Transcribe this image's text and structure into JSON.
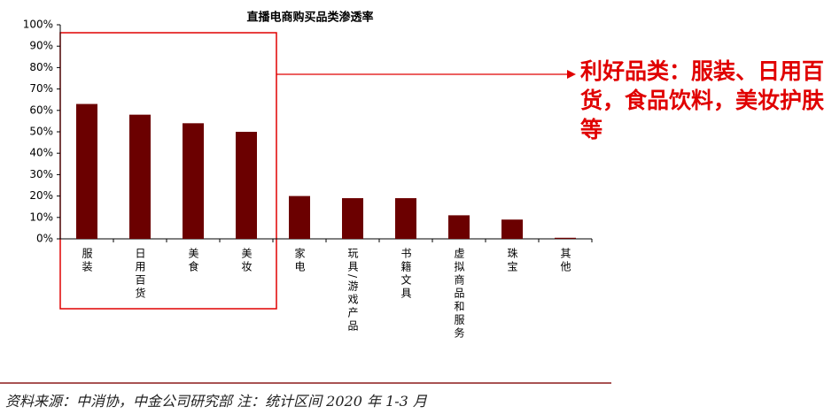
{
  "chart_data": {
    "type": "bar",
    "title": "直播电商购买品类渗透率",
    "categories": [
      "服装",
      "日用百货",
      "美食",
      "美妆",
      "家电",
      "玩具/游戏产品",
      "书籍文具",
      "虚拟商品和服务",
      "珠宝",
      "其他"
    ],
    "values": [
      63,
      58,
      54,
      50,
      20,
      19,
      19,
      11,
      9,
      0.5
    ],
    "color": "#6b0000",
    "ylim": [
      0,
      100
    ],
    "yticks": [
      {
        "value": 0,
        "label": "0%"
      },
      {
        "value": 10,
        "label": "10%"
      },
      {
        "value": 20,
        "label": "20%"
      },
      {
        "value": 30,
        "label": "30%"
      },
      {
        "value": 40,
        "label": "40%"
      },
      {
        "value": 50,
        "label": "50%"
      },
      {
        "value": 60,
        "label": "60%"
      },
      {
        "value": 70,
        "label": "70%"
      },
      {
        "value": 80,
        "label": "80%"
      },
      {
        "value": 90,
        "label": "90%"
      },
      {
        "value": 100,
        "label": "100%"
      }
    ],
    "annotation": "利好品类：服装、日用百货，食品饮料，美妆护肤等",
    "source": "资料来源：中消协，中金公司研究部 注：统计区间 2020 年 1-3 月"
  }
}
